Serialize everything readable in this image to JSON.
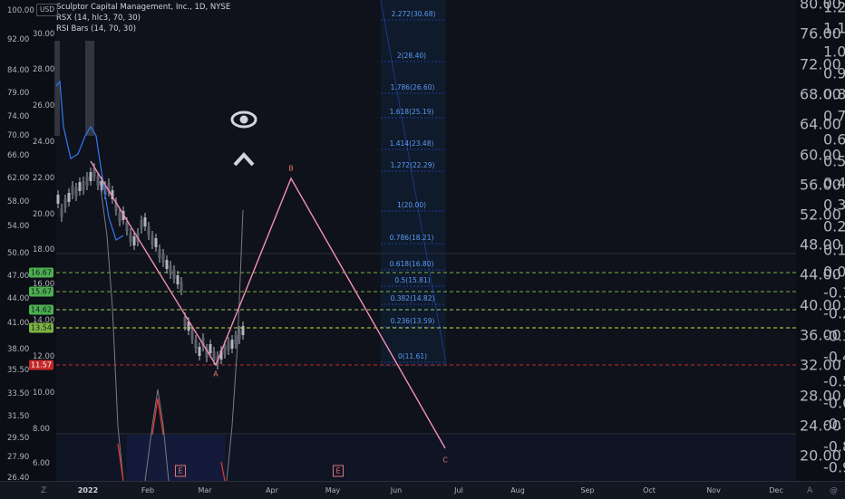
{
  "header": {
    "currency_badge": "USD",
    "title": "Sculptor Capital Management, Inc., 1D, NYSE",
    "indicator_1": "RSX (14, hlc3, 70, 30)",
    "indicator_2": "RSI Bars (14, 70, 30)"
  },
  "axis_left_outer": [
    "100.00",
    "92.00",
    "84.00",
    "79.00",
    "74.00",
    "70.00",
    "66.00",
    "62.00",
    "58.00",
    "54.00",
    "50.00",
    "47.00",
    "44.00",
    "41.00",
    "38.00",
    "35.50",
    "33.50",
    "31.50",
    "29.50",
    "27.90",
    "26.40"
  ],
  "axis_left_inner": [
    "30.00",
    "28.00",
    "26.00",
    "24.00",
    "22.00",
    "20.00",
    "18.00",
    "16.00",
    "14.00",
    "12.00",
    "10.00",
    "8.00",
    "6.00"
  ],
  "price_tags": [
    {
      "value": "16.67",
      "color": "green"
    },
    {
      "value": "15.67",
      "color": "green"
    },
    {
      "value": "14.62",
      "color": "green"
    },
    {
      "value": "13.54",
      "color": "lime"
    },
    {
      "value": "11.57",
      "color": "red"
    }
  ],
  "axis_right_outer": [
    "80.00",
    "76.00",
    "72.00",
    "68.00",
    "64.00",
    "60.00",
    "56.00",
    "52.00",
    "48.00",
    "44.00",
    "40.00",
    "36.00",
    "32.00",
    "28.00",
    "24.00",
    "20.00"
  ],
  "axis_right_inner": [
    "1.20",
    "1.10",
    "1.00",
    "0.90",
    "0.80",
    "0.70",
    "0.60",
    "0.50",
    "0.40",
    "0.30",
    "0.20",
    "0.10",
    "0.00",
    "-0.10",
    "-0.20",
    "-0.30",
    "-0.40",
    "-0.50",
    "-0.60",
    "-0.70",
    "-0.80",
    "-0.90"
  ],
  "fib_levels": [
    "2.272(30.68)",
    "2(28.40)",
    "1.786(26.60)",
    "1.618(25.19)",
    "1.414(23.48)",
    "1.272(22.29)",
    "1(20.00)",
    "0.786(18.21)",
    "0.618(16.80)",
    "0.5(15.81)",
    "0.382(14.82)",
    "0.236(13.59)",
    "0(11.61)"
  ],
  "wave_labels": [
    "A",
    "B",
    "C"
  ],
  "event_badges": [
    "E",
    "E"
  ],
  "months": [
    "2022",
    "Feb",
    "Mar",
    "Apr",
    "May",
    "Jun",
    "Jul",
    "Aug",
    "Sep",
    "Oct",
    "Nov",
    "Dec"
  ],
  "corner_left": "Z",
  "corner_right_1": "A",
  "corner_right_2": "@",
  "colors": {
    "wave": "#f48fb1",
    "fib": "#5b9cf6",
    "green": "#4caf50",
    "red": "#c62828",
    "candles": "#b2b5be"
  }
}
